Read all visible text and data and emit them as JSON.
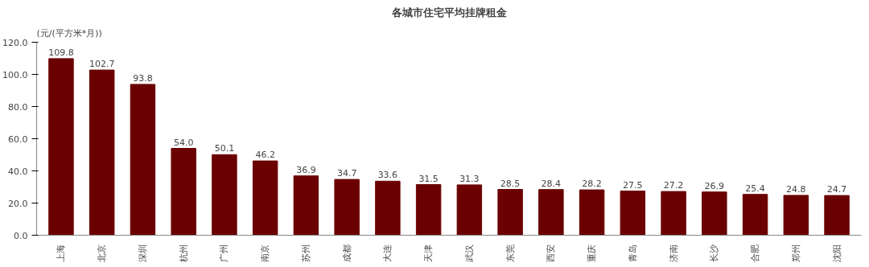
{
  "chart_data": {
    "type": "bar",
    "title": "各城市住宅平均挂牌租金",
    "ylabel": "(元/(平方米*月))",
    "categories": [
      "上海",
      "北京",
      "深圳",
      "杭州",
      "广州",
      "南京",
      "苏州",
      "成都",
      "大连",
      "天津",
      "武汉",
      "东莞",
      "西安",
      "重庆",
      "青岛",
      "济南",
      "长沙",
      "合肥",
      "郑州",
      "沈阳"
    ],
    "values": [
      109.8,
      102.7,
      93.8,
      54.0,
      50.1,
      46.2,
      36.9,
      34.7,
      33.6,
      31.5,
      31.3,
      28.5,
      28.4,
      28.2,
      27.5,
      27.2,
      26.9,
      25.4,
      24.8,
      24.7
    ],
    "color": "#6b0000",
    "ylim": [
      0,
      120
    ],
    "yticks": [
      {
        "value": 0,
        "label": "0.0"
      },
      {
        "value": 20,
        "label": "20.0"
      },
      {
        "value": 40,
        "label": "40.0"
      },
      {
        "value": 60,
        "label": "60.0"
      },
      {
        "value": 80,
        "label": "80.0"
      },
      {
        "value": 100,
        "label": "100.0"
      },
      {
        "value": 120,
        "label": "120.0"
      }
    ],
    "value_labels": [
      "109.8",
      "102.7",
      "93.8",
      "54.0",
      "50.1",
      "46.2",
      "36.9",
      "34.7",
      "33.6",
      "31.5",
      "31.3",
      "28.5",
      "28.4",
      "28.2",
      "27.5",
      "27.2",
      "26.9",
      "25.4",
      "24.8",
      "24.7"
    ],
    "grid": false
  }
}
